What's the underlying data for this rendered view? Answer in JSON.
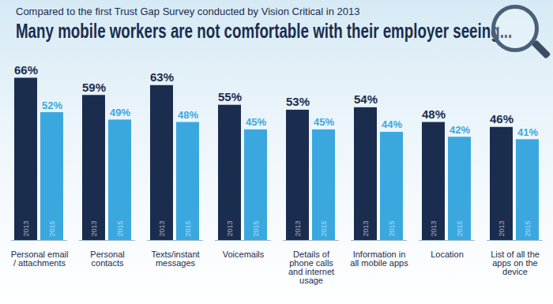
{
  "chart_data": {
    "type": "bar",
    "subtitle": "Compared to the first Trust Gap Survey conducted by Vision Critical in 2013",
    "title": "Many mobile workers are not comfortable with their employer seeing...",
    "categories": [
      "Personal email / attachments",
      "Personal contacts",
      "Texts/instant messages",
      "Voicemails",
      "Details of phone calls and internet usage",
      "Information in all mobile apps",
      "Location",
      "List of all the apps on the device"
    ],
    "series": [
      {
        "name": "2013",
        "color": "#1b2d4f",
        "values": [
          66,
          59,
          63,
          55,
          53,
          54,
          48,
          46
        ],
        "value_labels": [
          "66%",
          "59%",
          "63%",
          "55%",
          "53%",
          "54%",
          "48%",
          "46%"
        ]
      },
      {
        "name": "2015",
        "color": "#3aa8df",
        "values": [
          52,
          49,
          48,
          45,
          45,
          44,
          42,
          41
        ],
        "value_labels": [
          "52%",
          "49%",
          "48%",
          "45%",
          "45%",
          "44%",
          "42%",
          "41%"
        ]
      }
    ],
    "ylim": [
      0,
      70
    ],
    "tick_labels": "x",
    "data_labels": true
  }
}
